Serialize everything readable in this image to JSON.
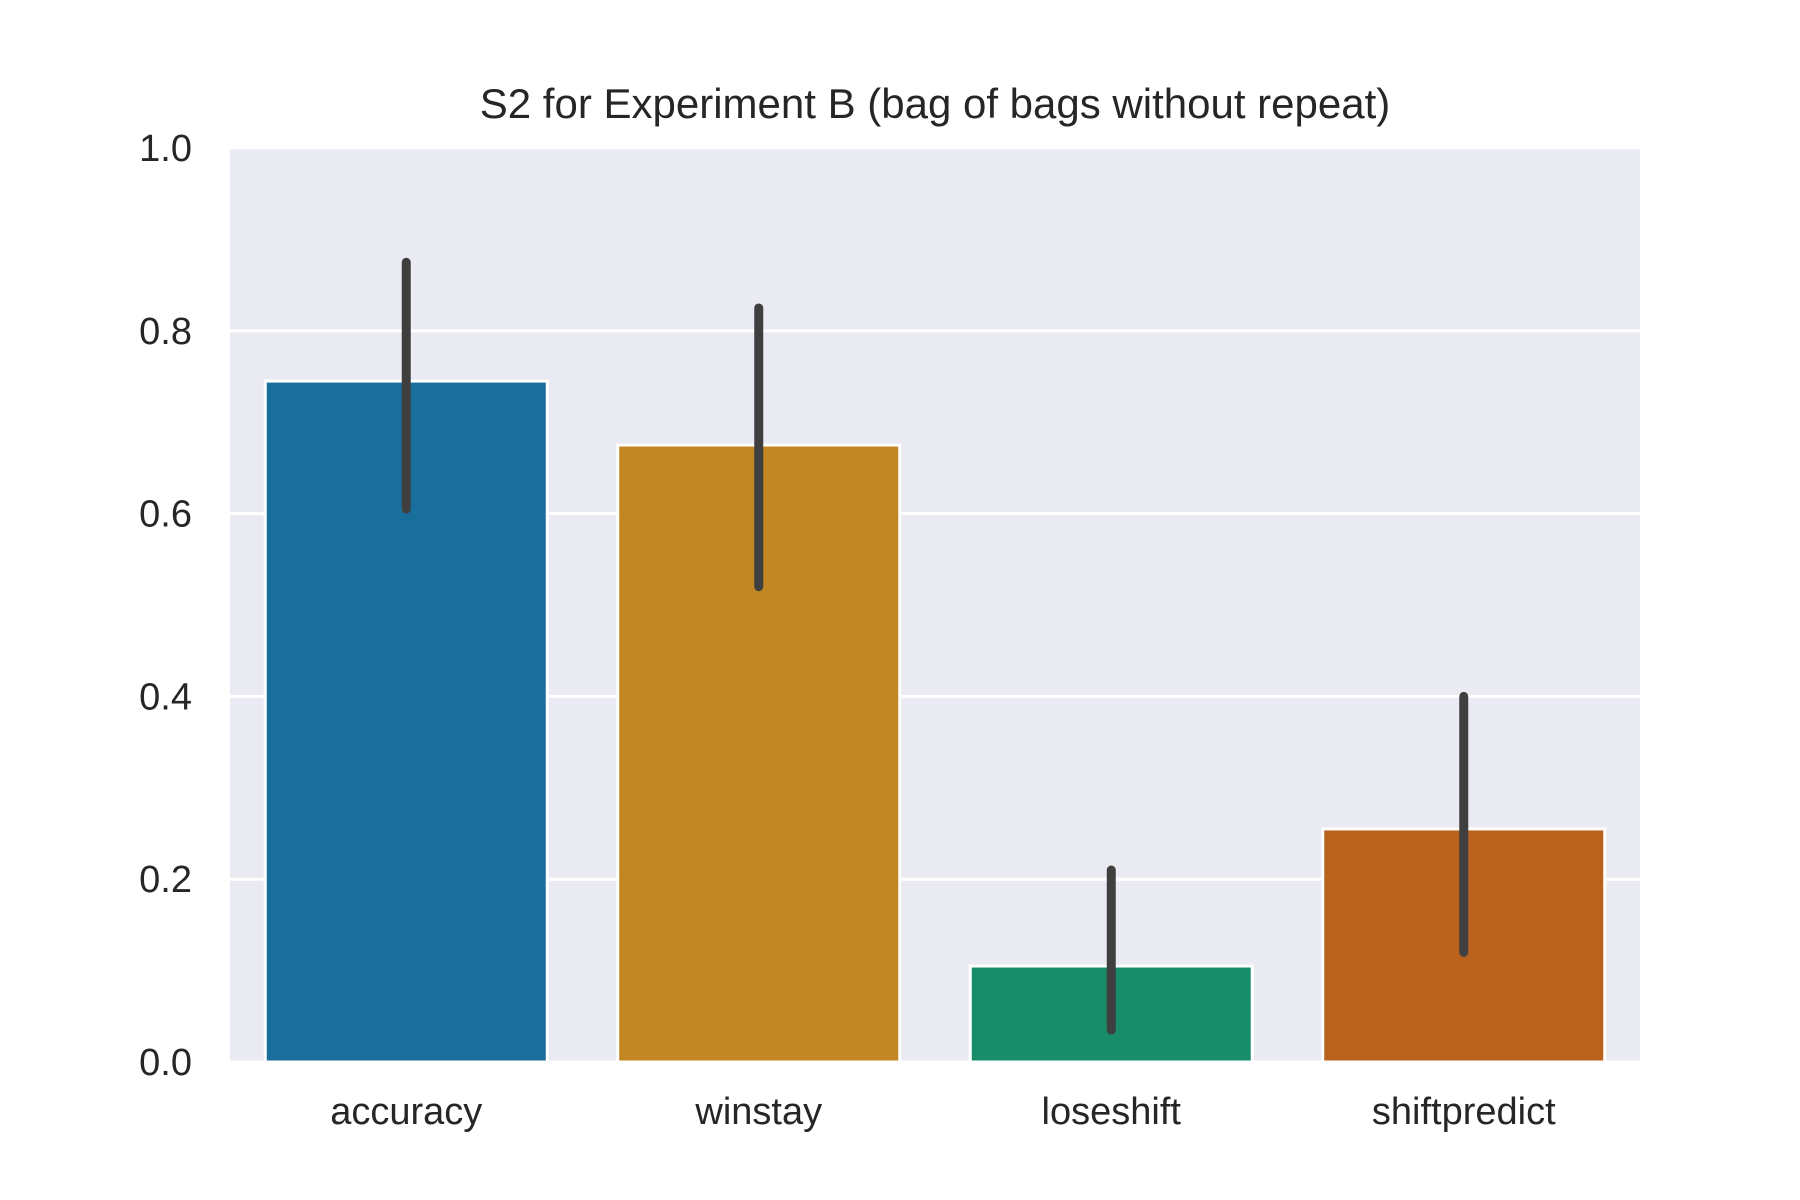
{
  "chart_data": {
    "type": "bar",
    "title": "S2 for Experiment B (bag of bags without repeat)",
    "xlabel": "",
    "ylabel": "",
    "ylim": [
      0,
      1.0
    ],
    "yticks": [
      "0.0",
      "0.2",
      "0.4",
      "0.6",
      "0.8",
      "1.0"
    ],
    "categories": [
      "accuracy",
      "winstay",
      "loseshift",
      "shiftpredict"
    ],
    "values": [
      0.745,
      0.675,
      0.105,
      0.255
    ],
    "error_low": [
      0.605,
      0.52,
      0.035,
      0.12
    ],
    "error_high": [
      0.875,
      0.825,
      0.21,
      0.4
    ],
    "colors": [
      "#1a6e9c",
      "#c28722",
      "#198d6a",
      "#b9621e"
    ],
    "grid": true,
    "background": "#eaeaf2"
  }
}
